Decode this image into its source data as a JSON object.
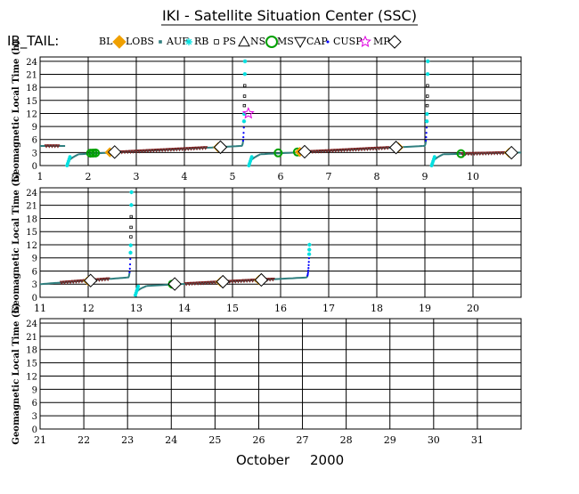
{
  "header": {
    "title": "IKI - Satellite Situation Center (SSC)",
    "satellite": "IB_TAIL:"
  },
  "legend": [
    {
      "label": "BL",
      "symbol": "diamond",
      "color": "#f0a000"
    },
    {
      "label": "LOBS",
      "symbol": "square",
      "color": "#2f7f7f"
    },
    {
      "label": "AUF",
      "symbol": "asterisk",
      "color": "#00e0e0"
    },
    {
      "label": "RB",
      "symbol": "square-open",
      "color": "#000000"
    },
    {
      "label": "PS",
      "symbol": "triangle",
      "color": "#000000"
    },
    {
      "label": "NS",
      "symbol": "circle",
      "color": "#00a000"
    },
    {
      "label": "MS",
      "symbol": "triangle-down",
      "color": "#000000"
    },
    {
      "label": "CAP",
      "symbol": "dot",
      "color": "#0000ff"
    },
    {
      "label": "CUSP",
      "symbol": "star",
      "color": "#e000e0"
    },
    {
      "label": "MP",
      "symbol": "diamond-open",
      "color": "#000000"
    }
  ],
  "footer": {
    "month": "October",
    "year": "2000"
  },
  "colors": {
    "rb": "#000000",
    "auf": "#00e0e0",
    "cap": "#0000ff",
    "lobs": "#2f7f7f",
    "ms": "#7a1a1a",
    "bl": "#f0a000",
    "ns": "#00a000",
    "cusp": "#e000e0",
    "mp": "#000000"
  },
  "chart_data": [
    {
      "type": "scatter",
      "ylabel": "Geomagnetic Local Time (h)",
      "xlim": [
        1,
        11
      ],
      "ylim": [
        0,
        25
      ],
      "yticks": [
        0,
        3,
        6,
        9,
        12,
        15,
        18,
        21,
        24
      ],
      "xticks": [
        "1",
        "2",
        "3",
        "4",
        "5",
        "6",
        "7",
        "8",
        "9",
        "10"
      ],
      "orbits": [
        {
          "start_day": 1.0,
          "end_day": 1.52,
          "start_glt": 4.5,
          "end_glt": 4.5
        },
        {
          "start_day": 1.55,
          "end_day": 5.28,
          "start_glt": 0.0,
          "end_glt": 4.5,
          "rise_top": 24
        },
        {
          "start_day": 5.33,
          "end_day": 9.08,
          "start_glt": 0.0,
          "end_glt": 4.5,
          "rise_top": 24
        },
        {
          "start_day": 9.13,
          "end_day": 11.0,
          "start_glt": 0.0,
          "end_glt": 3.0
        }
      ],
      "markers": {
        "ns": [
          2.05,
          2.1,
          2.15,
          5.95,
          6.35,
          9.75
        ],
        "mp": [
          2.55,
          4.75,
          6.5,
          8.4,
          10.8
        ],
        "bl": [
          2.45,
          4.7,
          6.4,
          8.45,
          10.75
        ],
        "cusp": [
          [
            5.33,
            12
          ]
        ]
      }
    },
    {
      "type": "scatter",
      "ylabel": "Geomagnetic Local Time (h)",
      "xlim": [
        11,
        21
      ],
      "ylim": [
        0,
        25
      ],
      "yticks": [
        0,
        3,
        6,
        9,
        12,
        15,
        18,
        21,
        24
      ],
      "xticks": [
        "11",
        "12",
        "13",
        "14",
        "15",
        "16",
        "17",
        "18",
        "19",
        "20"
      ],
      "orbits": [
        {
          "start_day": 11.0,
          "end_day": 12.92,
          "start_glt": 3.0,
          "end_glt": 4.5,
          "rise_top": 24
        },
        {
          "start_day": 12.97,
          "end_day": 16.62,
          "start_glt": 0.5,
          "end_glt": 4.5,
          "rise_top": 12
        }
      ],
      "markers": {
        "ns": [
          13.75
        ],
        "mp": [
          12.05,
          13.8,
          14.8,
          15.6
        ],
        "bl": [
          12.0,
          14.75,
          15.55
        ],
        "cusp": []
      }
    },
    {
      "type": "scatter",
      "ylabel": "Geomagnetic Local Time (h)",
      "xlim": [
        21,
        32
      ],
      "ylim": [
        0,
        25
      ],
      "yticks": [
        0,
        3,
        6,
        9,
        12,
        15,
        18,
        21,
        24
      ],
      "xticks": [
        "21",
        "22",
        "23",
        "24",
        "25",
        "26",
        "27",
        "28",
        "29",
        "30",
        "31"
      ],
      "orbits": [],
      "markers": {
        "ns": [],
        "mp": [],
        "bl": [],
        "cusp": []
      }
    }
  ]
}
